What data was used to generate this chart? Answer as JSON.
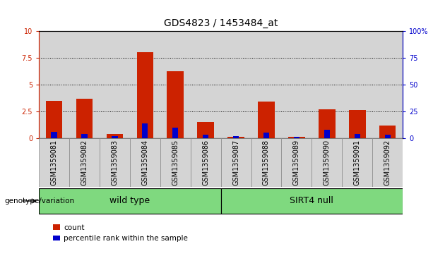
{
  "title": "GDS4823 / 1453484_at",
  "samples": [
    "GSM1359081",
    "GSM1359082",
    "GSM1359083",
    "GSM1359084",
    "GSM1359085",
    "GSM1359086",
    "GSM1359087",
    "GSM1359088",
    "GSM1359089",
    "GSM1359090",
    "GSM1359091",
    "GSM1359092"
  ],
  "count": [
    3.5,
    3.7,
    0.4,
    8.0,
    6.2,
    1.5,
    0.1,
    3.4,
    0.1,
    2.7,
    2.6,
    1.2
  ],
  "percentile": [
    6,
    4,
    2,
    14,
    10,
    3,
    2,
    5,
    1,
    8,
    4,
    3
  ],
  "ylim_left": [
    0,
    10
  ],
  "ylim_right": [
    0,
    100
  ],
  "yticks_left": [
    0,
    2.5,
    5.0,
    7.5,
    10
  ],
  "yticks_right": [
    0,
    25,
    50,
    75,
    100
  ],
  "ytick_labels_left": [
    "0",
    "2.5",
    "5",
    "7.5",
    "10"
  ],
  "ytick_labels_right": [
    "0",
    "25",
    "50",
    "75",
    "100%"
  ],
  "groups": [
    {
      "label": "wild type",
      "start": 0,
      "end": 6,
      "color": "#7FD97F"
    },
    {
      "label": "SIRT4 null",
      "start": 6,
      "end": 12,
      "color": "#7FD97F"
    }
  ],
  "genotype_label": "genotype/variation",
  "bar_color_red": "#CC2200",
  "bar_color_blue": "#0000CC",
  "legend_count": "count",
  "legend_percentile": "percentile rank within the sample",
  "title_fontsize": 10,
  "tick_fontsize": 7,
  "label_fontsize": 7,
  "group_fontsize": 9
}
